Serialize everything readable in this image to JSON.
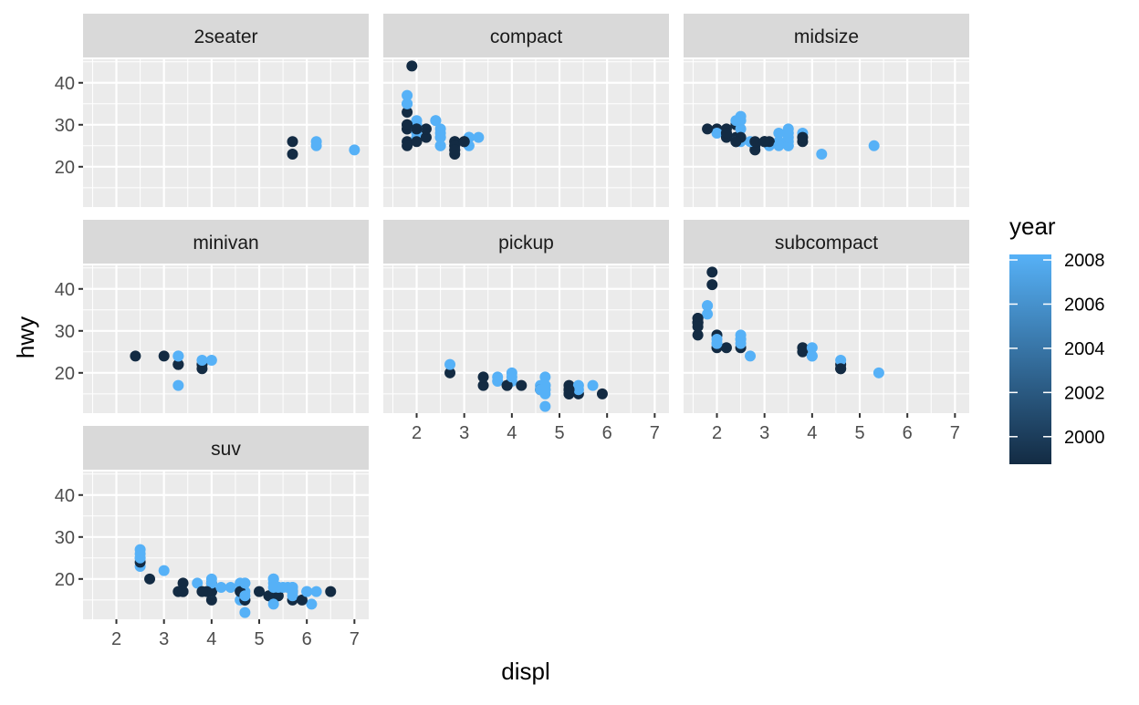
{
  "chart_data": {
    "type": "scatter",
    "xlabel": "displ",
    "ylabel": "hwy",
    "xlim": [
      1.3,
      7.3
    ],
    "ylim": [
      10.4,
      45.6
    ],
    "x_ticks": [
      2,
      3,
      4,
      5,
      6,
      7
    ],
    "y_ticks": [
      20,
      30,
      40
    ],
    "grid": true,
    "facet_rows": 3,
    "facet_cols": 3,
    "color_legend": {
      "title": "year",
      "ticks": [
        2000,
        2002,
        2004,
        2006,
        2008
      ],
      "min": 1999,
      "max": 2008,
      "low_color": "#132B43",
      "high_color": "#56B1F7",
      "position": "right"
    },
    "panels": [
      {
        "name": "2seater",
        "points": [
          [
            5.7,
            26,
            1999
          ],
          [
            5.7,
            23,
            1999
          ],
          [
            6.2,
            26,
            2008
          ],
          [
            6.2,
            25,
            2008
          ],
          [
            7.0,
            24,
            2008
          ]
        ]
      },
      {
        "name": "compact",
        "points": [
          [
            1.8,
            29,
            1999
          ],
          [
            1.8,
            29,
            1999
          ],
          [
            2.0,
            31,
            2008
          ],
          [
            2.0,
            30,
            2008
          ],
          [
            2.8,
            26,
            1999
          ],
          [
            2.8,
            26,
            1999
          ],
          [
            3.1,
            27,
            2008
          ],
          [
            1.8,
            26,
            1999
          ],
          [
            1.8,
            25,
            1999
          ],
          [
            2.0,
            28,
            2008
          ],
          [
            2.0,
            27,
            2008
          ],
          [
            2.8,
            25,
            1999
          ],
          [
            2.8,
            25,
            1999
          ],
          [
            3.1,
            25,
            2008
          ],
          [
            3.1,
            27,
            2008
          ],
          [
            2.2,
            27,
            1999
          ],
          [
            2.2,
            29,
            1999
          ],
          [
            2.4,
            31,
            2008
          ],
          [
            2.4,
            31,
            2008
          ],
          [
            3.0,
            26,
            1999
          ],
          [
            3.0,
            26,
            1999
          ],
          [
            3.3,
            27,
            2008
          ],
          [
            1.8,
            33,
            1999
          ],
          [
            1.8,
            35,
            2008
          ],
          [
            1.8,
            37,
            2008
          ],
          [
            1.8,
            35,
            2008
          ],
          [
            1.9,
            44,
            1999
          ],
          [
            2.0,
            29,
            1999
          ],
          [
            2.0,
            29,
            2008
          ],
          [
            2.5,
            29,
            2008
          ],
          [
            2.5,
            28,
            2008
          ],
          [
            2.8,
            23,
            1999
          ],
          [
            2.8,
            24,
            1999
          ],
          [
            2.5,
            25,
            2008
          ],
          [
            2.5,
            27,
            2008
          ],
          [
            2.5,
            25,
            2008
          ],
          [
            2.0,
            26,
            1999
          ],
          [
            2.0,
            29,
            1999
          ],
          [
            2.0,
            29,
            2008
          ],
          [
            2.8,
            24,
            1999
          ],
          [
            1.8,
            30,
            1999
          ],
          [
            1.8,
            30,
            1999
          ],
          [
            2.0,
            29,
            1999
          ],
          [
            2.5,
            27,
            2008
          ]
        ]
      },
      {
        "name": "midsize",
        "points": [
          [
            2.8,
            24,
            1999
          ],
          [
            2.8,
            25,
            1999
          ],
          [
            3.1,
            25,
            2008
          ],
          [
            4.2,
            23,
            2008
          ],
          [
            2.4,
            27,
            1999
          ],
          [
            2.4,
            30,
            1999
          ],
          [
            2.5,
            29,
            2008
          ],
          [
            3.3,
            28,
            2008
          ],
          [
            3.3,
            26,
            2008
          ],
          [
            3.5,
            29,
            2008
          ],
          [
            3.8,
            26,
            1999
          ],
          [
            2.5,
            31,
            2008
          ],
          [
            2.5,
            32,
            2008
          ],
          [
            2.7,
            26,
            2008
          ],
          [
            2.4,
            26,
            2008
          ],
          [
            2.0,
            29,
            1999
          ],
          [
            2.2,
            29,
            1999
          ],
          [
            2.4,
            31,
            2008
          ],
          [
            3.0,
            26,
            1999
          ],
          [
            3.5,
            26,
            2008
          ],
          [
            3.5,
            25,
            2008
          ],
          [
            2.5,
            26,
            2008
          ],
          [
            3.0,
            26,
            1999
          ],
          [
            2.0,
            28,
            2008
          ],
          [
            1.8,
            29,
            1999
          ],
          [
            2.8,
            26,
            1999
          ],
          [
            3.1,
            26,
            1999
          ],
          [
            3.5,
            28,
            2008
          ],
          [
            3.8,
            28,
            2008
          ],
          [
            5.3,
            25,
            2008
          ],
          [
            2.2,
            28,
            1999
          ],
          [
            3.0,
            26,
            1999
          ],
          [
            3.8,
            27,
            1999
          ],
          [
            2.5,
            27,
            1999
          ],
          [
            2.4,
            26,
            1999
          ],
          [
            3.5,
            25,
            2008
          ],
          [
            3.5,
            27,
            2008
          ],
          [
            2.2,
            27,
            1999
          ],
          [
            2.4,
            26,
            1999
          ],
          [
            3.3,
            25,
            2008
          ],
          [
            2.2,
            28,
            1999
          ]
        ]
      },
      {
        "name": "minivan",
        "points": [
          [
            2.4,
            24,
            1999
          ],
          [
            3.0,
            24,
            1999
          ],
          [
            3.3,
            22,
            1999
          ],
          [
            3.3,
            22,
            1999
          ],
          [
            3.3,
            24,
            2008
          ],
          [
            3.3,
            24,
            2008
          ],
          [
            3.3,
            17,
            2008
          ],
          [
            3.8,
            22,
            1999
          ],
          [
            3.8,
            21,
            1999
          ],
          [
            3.8,
            23,
            2008
          ],
          [
            4.0,
            23,
            2008
          ]
        ]
      },
      {
        "name": "pickup",
        "points": [
          [
            2.7,
            20,
            1999
          ],
          [
            2.7,
            22,
            2008
          ],
          [
            3.4,
            17,
            1999
          ],
          [
            3.4,
            19,
            1999
          ],
          [
            4.0,
            18,
            2008
          ],
          [
            4.0,
            20,
            2008
          ],
          [
            3.7,
            19,
            2008
          ],
          [
            3.7,
            18,
            2008
          ],
          [
            3.9,
            17,
            1999
          ],
          [
            3.9,
            17,
            1999
          ],
          [
            4.7,
            17,
            2008
          ],
          [
            4.7,
            16,
            2008
          ],
          [
            4.7,
            12,
            2008
          ],
          [
            5.2,
            15,
            1999
          ],
          [
            5.2,
            17,
            1999
          ],
          [
            5.7,
            17,
            2008
          ],
          [
            5.9,
            15,
            1999
          ],
          [
            4.7,
            19,
            2008
          ],
          [
            4.7,
            17,
            2008
          ],
          [
            4.6,
            17,
            2008
          ],
          [
            5.4,
            15,
            1999
          ],
          [
            5.4,
            17,
            2008
          ],
          [
            4.2,
            17,
            1999
          ],
          [
            4.6,
            16,
            1999
          ],
          [
            5.4,
            16,
            2008
          ],
          [
            4.0,
            19,
            2008
          ],
          [
            4.7,
            17,
            2008
          ],
          [
            5.2,
            16,
            1999
          ],
          [
            5.2,
            15,
            1999
          ],
          [
            4.6,
            16,
            2008
          ],
          [
            4.7,
            16,
            2008
          ],
          [
            5.2,
            16,
            1999
          ],
          [
            4.7,
            15,
            2008
          ]
        ]
      },
      {
        "name": "subcompact",
        "points": [
          [
            3.8,
            26,
            1999
          ],
          [
            3.8,
            25,
            1999
          ],
          [
            4.0,
            26,
            2008
          ],
          [
            4.0,
            24,
            2008
          ],
          [
            4.6,
            21,
            1999
          ],
          [
            4.6,
            22,
            1999
          ],
          [
            4.6,
            23,
            2008
          ],
          [
            5.4,
            20,
            2008
          ],
          [
            1.6,
            33,
            1999
          ],
          [
            1.6,
            32,
            1999
          ],
          [
            1.6,
            32,
            1999
          ],
          [
            1.6,
            29,
            1999
          ],
          [
            1.6,
            32,
            1999
          ],
          [
            1.8,
            34,
            2008
          ],
          [
            1.8,
            36,
            2008
          ],
          [
            1.8,
            36,
            2008
          ],
          [
            2.0,
            29,
            2008
          ],
          [
            2.0,
            26,
            1999
          ],
          [
            2.0,
            27,
            2008
          ],
          [
            1.9,
            44,
            1999
          ],
          [
            1.9,
            41,
            1999
          ],
          [
            2.0,
            29,
            1999
          ],
          [
            2.5,
            26,
            1999
          ],
          [
            2.5,
            28,
            2008
          ],
          [
            2.5,
            29,
            2008
          ],
          [
            2.7,
            24,
            2008
          ],
          [
            2.2,
            26,
            1999
          ],
          [
            2.5,
            27,
            2008
          ],
          [
            2.0,
            28,
            2008
          ],
          [
            1.6,
            33,
            1999
          ],
          [
            1.6,
            31,
            1999
          ],
          [
            2.0,
            27,
            2008
          ],
          [
            2.5,
            28,
            2008
          ],
          [
            4.6,
            21,
            1999
          ],
          [
            4.0,
            24,
            2008
          ]
        ]
      },
      {
        "name": "suv",
        "points": [
          [
            5.3,
            20,
            2008
          ],
          [
            5.3,
            15,
            2008
          ],
          [
            5.3,
            20,
            2008
          ],
          [
            5.7,
            17,
            1999
          ],
          [
            6.0,
            17,
            2008
          ],
          [
            5.7,
            15,
            1999
          ],
          [
            5.7,
            18,
            2008
          ],
          [
            6.2,
            17,
            2008
          ],
          [
            6.5,
            17,
            1999
          ],
          [
            3.7,
            19,
            2008
          ],
          [
            4.7,
            19,
            2008
          ],
          [
            4.7,
            17,
            2008
          ],
          [
            4.7,
            12,
            2008
          ],
          [
            5.7,
            17,
            2008
          ],
          [
            6.1,
            14,
            2008
          ],
          [
            4.0,
            17,
            1999
          ],
          [
            4.0,
            15,
            1999
          ],
          [
            4.0,
            17,
            2008
          ],
          [
            4.6,
            15,
            2008
          ],
          [
            5.4,
            18,
            2008
          ],
          [
            5.4,
            18,
            2008
          ],
          [
            4.0,
            17,
            1999
          ],
          [
            4.0,
            19,
            1999
          ],
          [
            4.0,
            17,
            1999
          ],
          [
            4.0,
            19,
            2008
          ],
          [
            4.6,
            19,
            2008
          ],
          [
            5.0,
            17,
            1999
          ],
          [
            4.2,
            18,
            2008
          ],
          [
            4.4,
            18,
            2008
          ],
          [
            4.6,
            17,
            1999
          ],
          [
            5.4,
            16,
            1999
          ],
          [
            5.4,
            18,
            2008
          ],
          [
            3.3,
            17,
            1999
          ],
          [
            3.4,
            19,
            1999
          ],
          [
            3.4,
            17,
            1999
          ],
          [
            4.0,
            20,
            2008
          ],
          [
            4.7,
            15,
            1999
          ],
          [
            4.7,
            15,
            1999
          ],
          [
            5.7,
            16,
            2008
          ],
          [
            2.5,
            23,
            2008
          ],
          [
            2.5,
            25,
            2008
          ],
          [
            2.5,
            24,
            1999
          ],
          [
            2.5,
            27,
            2008
          ],
          [
            2.5,
            26,
            2008
          ],
          [
            2.5,
            25,
            2008
          ],
          [
            2.7,
            20,
            1999
          ],
          [
            3.0,
            22,
            2008
          ],
          [
            3.9,
            17,
            1999
          ],
          [
            5.2,
            16,
            1999
          ],
          [
            5.9,
            15,
            1999
          ],
          [
            4.7,
            16,
            2008
          ],
          [
            4.7,
            19,
            2008
          ],
          [
            5.3,
            19,
            2008
          ],
          [
            5.3,
            14,
            2008
          ],
          [
            5.3,
            20,
            2008
          ],
          [
            5.6,
            18,
            2008
          ],
          [
            5.7,
            18,
            2008
          ],
          [
            6.0,
            17,
            2008
          ],
          [
            5.3,
            18,
            2008
          ],
          [
            5.5,
            18,
            2008
          ],
          [
            3.8,
            17,
            1999
          ],
          [
            3.4,
            17,
            1999
          ]
        ]
      }
    ]
  }
}
